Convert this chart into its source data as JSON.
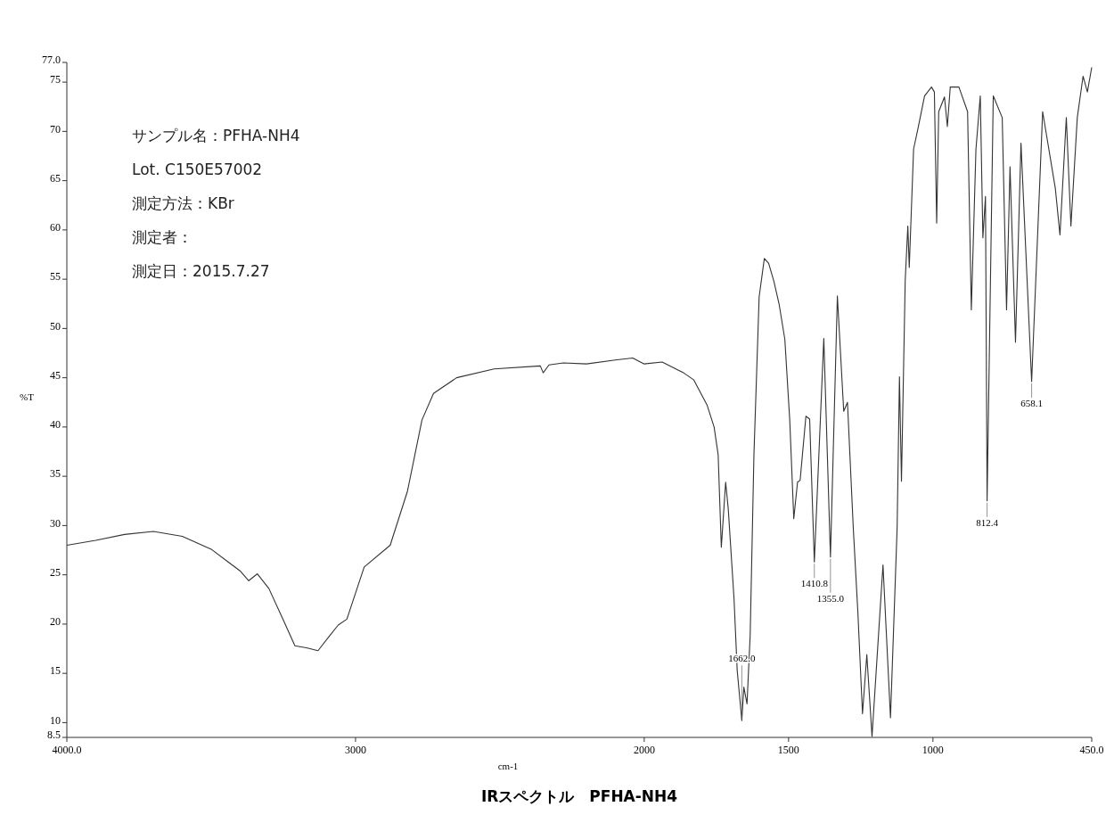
{
  "chart_data": {
    "type": "line",
    "title": "IRスペクトル　PFHA-NH4",
    "xlabel": "cm-1",
    "ylabel": "%T",
    "xlim": [
      4000,
      450
    ],
    "ylim": [
      8.5,
      77
    ],
    "xticks": [
      {
        "value": 4000,
        "label": "4000.0"
      },
      3000,
      2000,
      1500,
      1000,
      {
        "value": 450,
        "label": "450.0"
      }
    ],
    "yticks": [
      {
        "value": 8.5,
        "label": "8.5"
      },
      10,
      15,
      20,
      25,
      30,
      35,
      40,
      45,
      50,
      55,
      60,
      65,
      70,
      75,
      {
        "value": 77,
        "label": "77.0"
      }
    ],
    "grid": false,
    "marker": "none",
    "line_style": "solid",
    "series": [
      {
        "color": "#333333",
        "x": [
          4000,
          3900,
          3800,
          3700,
          3600,
          3500,
          3400,
          3370,
          3340,
          3300,
          3250,
          3210,
          3170,
          3130,
          3090,
          3060,
          3030,
          2970,
          2880,
          2820,
          2770,
          2730,
          2650,
          2520,
          2360,
          2350,
          2330,
          2280,
          2200,
          2100,
          2040,
          2000,
          1938,
          1864,
          1829,
          1782,
          1758,
          1744,
          1733,
          1718,
          1709,
          1689,
          1678,
          1662,
          1655,
          1644,
          1633,
          1620,
          1602,
          1584,
          1569,
          1551,
          1533,
          1513,
          1496,
          1482,
          1469,
          1460,
          1440,
          1427,
          1410.8,
          1378,
          1355,
          1331,
          1309,
          1296,
          1276,
          1260,
          1244,
          1229,
          1211,
          1173,
          1147,
          1124,
          1116,
          1109,
          1096,
          1087,
          1082,
          1067,
          1051,
          1029,
          1005,
          995,
          987,
          980,
          960,
          950,
          940,
          910,
          880,
          867,
          851,
          836,
          827,
          818,
          812.4,
          791,
          760,
          745,
          733,
          714,
          695,
          658.1,
          620,
          576,
          560,
          538,
          522,
          500,
          480,
          465,
          450
        ],
        "values": [
          28.0,
          28.5,
          29.1,
          29.4,
          28.9,
          27.6,
          25.4,
          24.4,
          25.1,
          23.6,
          20.4,
          17.8,
          17.6,
          17.3,
          18.8,
          19.9,
          20.5,
          25.8,
          28.0,
          33.5,
          40.7,
          43.4,
          45.0,
          45.9,
          46.2,
          45.5,
          46.3,
          46.5,
          46.4,
          46.8,
          47.0,
          46.4,
          46.6,
          45.5,
          44.8,
          42.2,
          40.0,
          37.2,
          27.8,
          34.4,
          31.7,
          22.6,
          15.3,
          10.2,
          13.6,
          11.9,
          18.9,
          37.2,
          53.2,
          57.1,
          56.6,
          54.8,
          52.5,
          48.9,
          40.7,
          30.7,
          34.4,
          34.6,
          41.1,
          40.8,
          26.3,
          49.0,
          26.8,
          53.3,
          41.6,
          42.5,
          29.8,
          21.2,
          10.9,
          16.9,
          8.6,
          26.0,
          10.5,
          29.8,
          45.1,
          34.5,
          54.9,
          60.4,
          56.2,
          68.2,
          70.4,
          73.6,
          74.5,
          74.0,
          60.7,
          72.0,
          73.5,
          70.5,
          74.5,
          74.5,
          72.0,
          51.9,
          68.2,
          73.6,
          59.2,
          63.4,
          32.5,
          73.6,
          71.4,
          51.9,
          66.4,
          48.6,
          68.8,
          44.6,
          72.0,
          64.2,
          59.5,
          71.4,
          60.4,
          71.4,
          75.6,
          74.0,
          76.5
        ]
      }
    ],
    "annotations": [
      "サンプル名：PFHA-NH4",
      "Lot. C150E57002",
      "測定方法：KBr",
      "測定者：",
      "測定日：2015.7.27",
      {
        "text": "1662.0",
        "x": 1662,
        "y": 10.2
      },
      {
        "text": "1410.8",
        "x": 1410.8,
        "y": 26.3
      },
      {
        "text": "1355.0",
        "x": 1355,
        "y": 26.8
      },
      {
        "text": "812.4",
        "x": 812.4,
        "y": 32.5
      },
      {
        "text": "658.1",
        "x": 658.1,
        "y": 44.6
      }
    ]
  }
}
